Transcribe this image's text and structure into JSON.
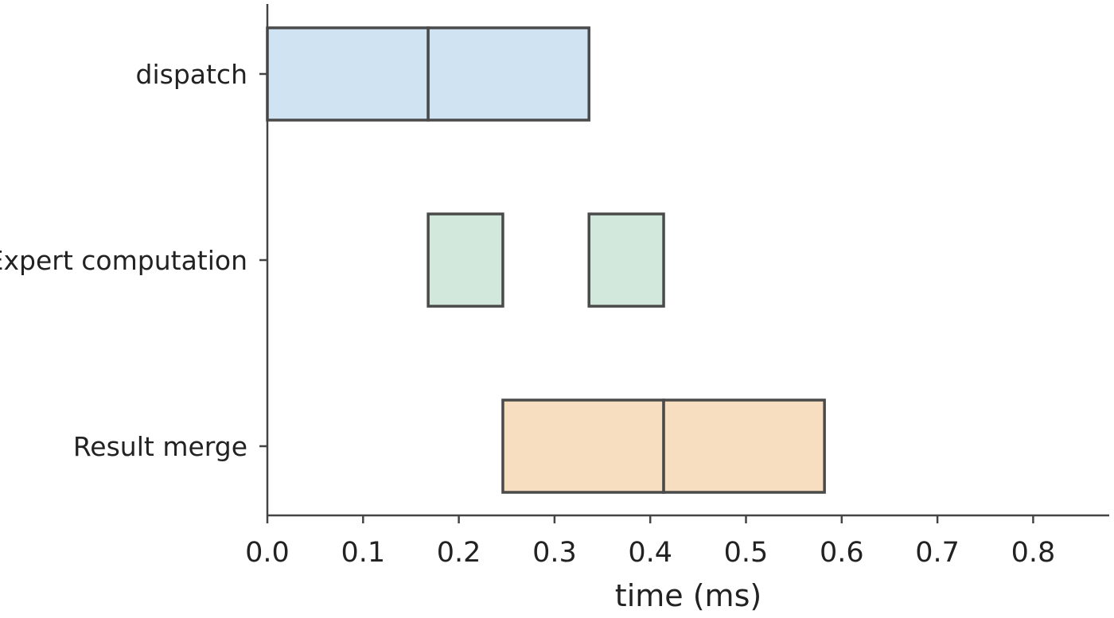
{
  "chart_data": {
    "type": "gantt",
    "xlabel": "time (ms)",
    "xlim": [
      0.0,
      0.88
    ],
    "xticks": [
      "0.0",
      "0.1",
      "0.2",
      "0.3",
      "0.4",
      "0.5",
      "0.6",
      "0.7",
      "0.8"
    ],
    "xtick_values": [
      0.0,
      0.1,
      0.2,
      0.3,
      0.4,
      0.5,
      0.6,
      0.7,
      0.8
    ],
    "categories": [
      "dispatch",
      "Expert computation",
      "Result merge"
    ],
    "series": [
      {
        "category": "dispatch",
        "color": "#cfe3f3",
        "segments": [
          {
            "start": 0.0,
            "end": 0.168
          },
          {
            "start": 0.168,
            "end": 0.336
          }
        ]
      },
      {
        "category": "Expert computation",
        "color": "#d2e8dc",
        "segments": [
          {
            "start": 0.168,
            "end": 0.246
          },
          {
            "start": 0.336,
            "end": 0.414
          }
        ]
      },
      {
        "category": "Result merge",
        "color": "#f8dec1",
        "segments": [
          {
            "start": 0.246,
            "end": 0.414
          },
          {
            "start": 0.414,
            "end": 0.582
          }
        ]
      }
    ],
    "grid": false
  }
}
